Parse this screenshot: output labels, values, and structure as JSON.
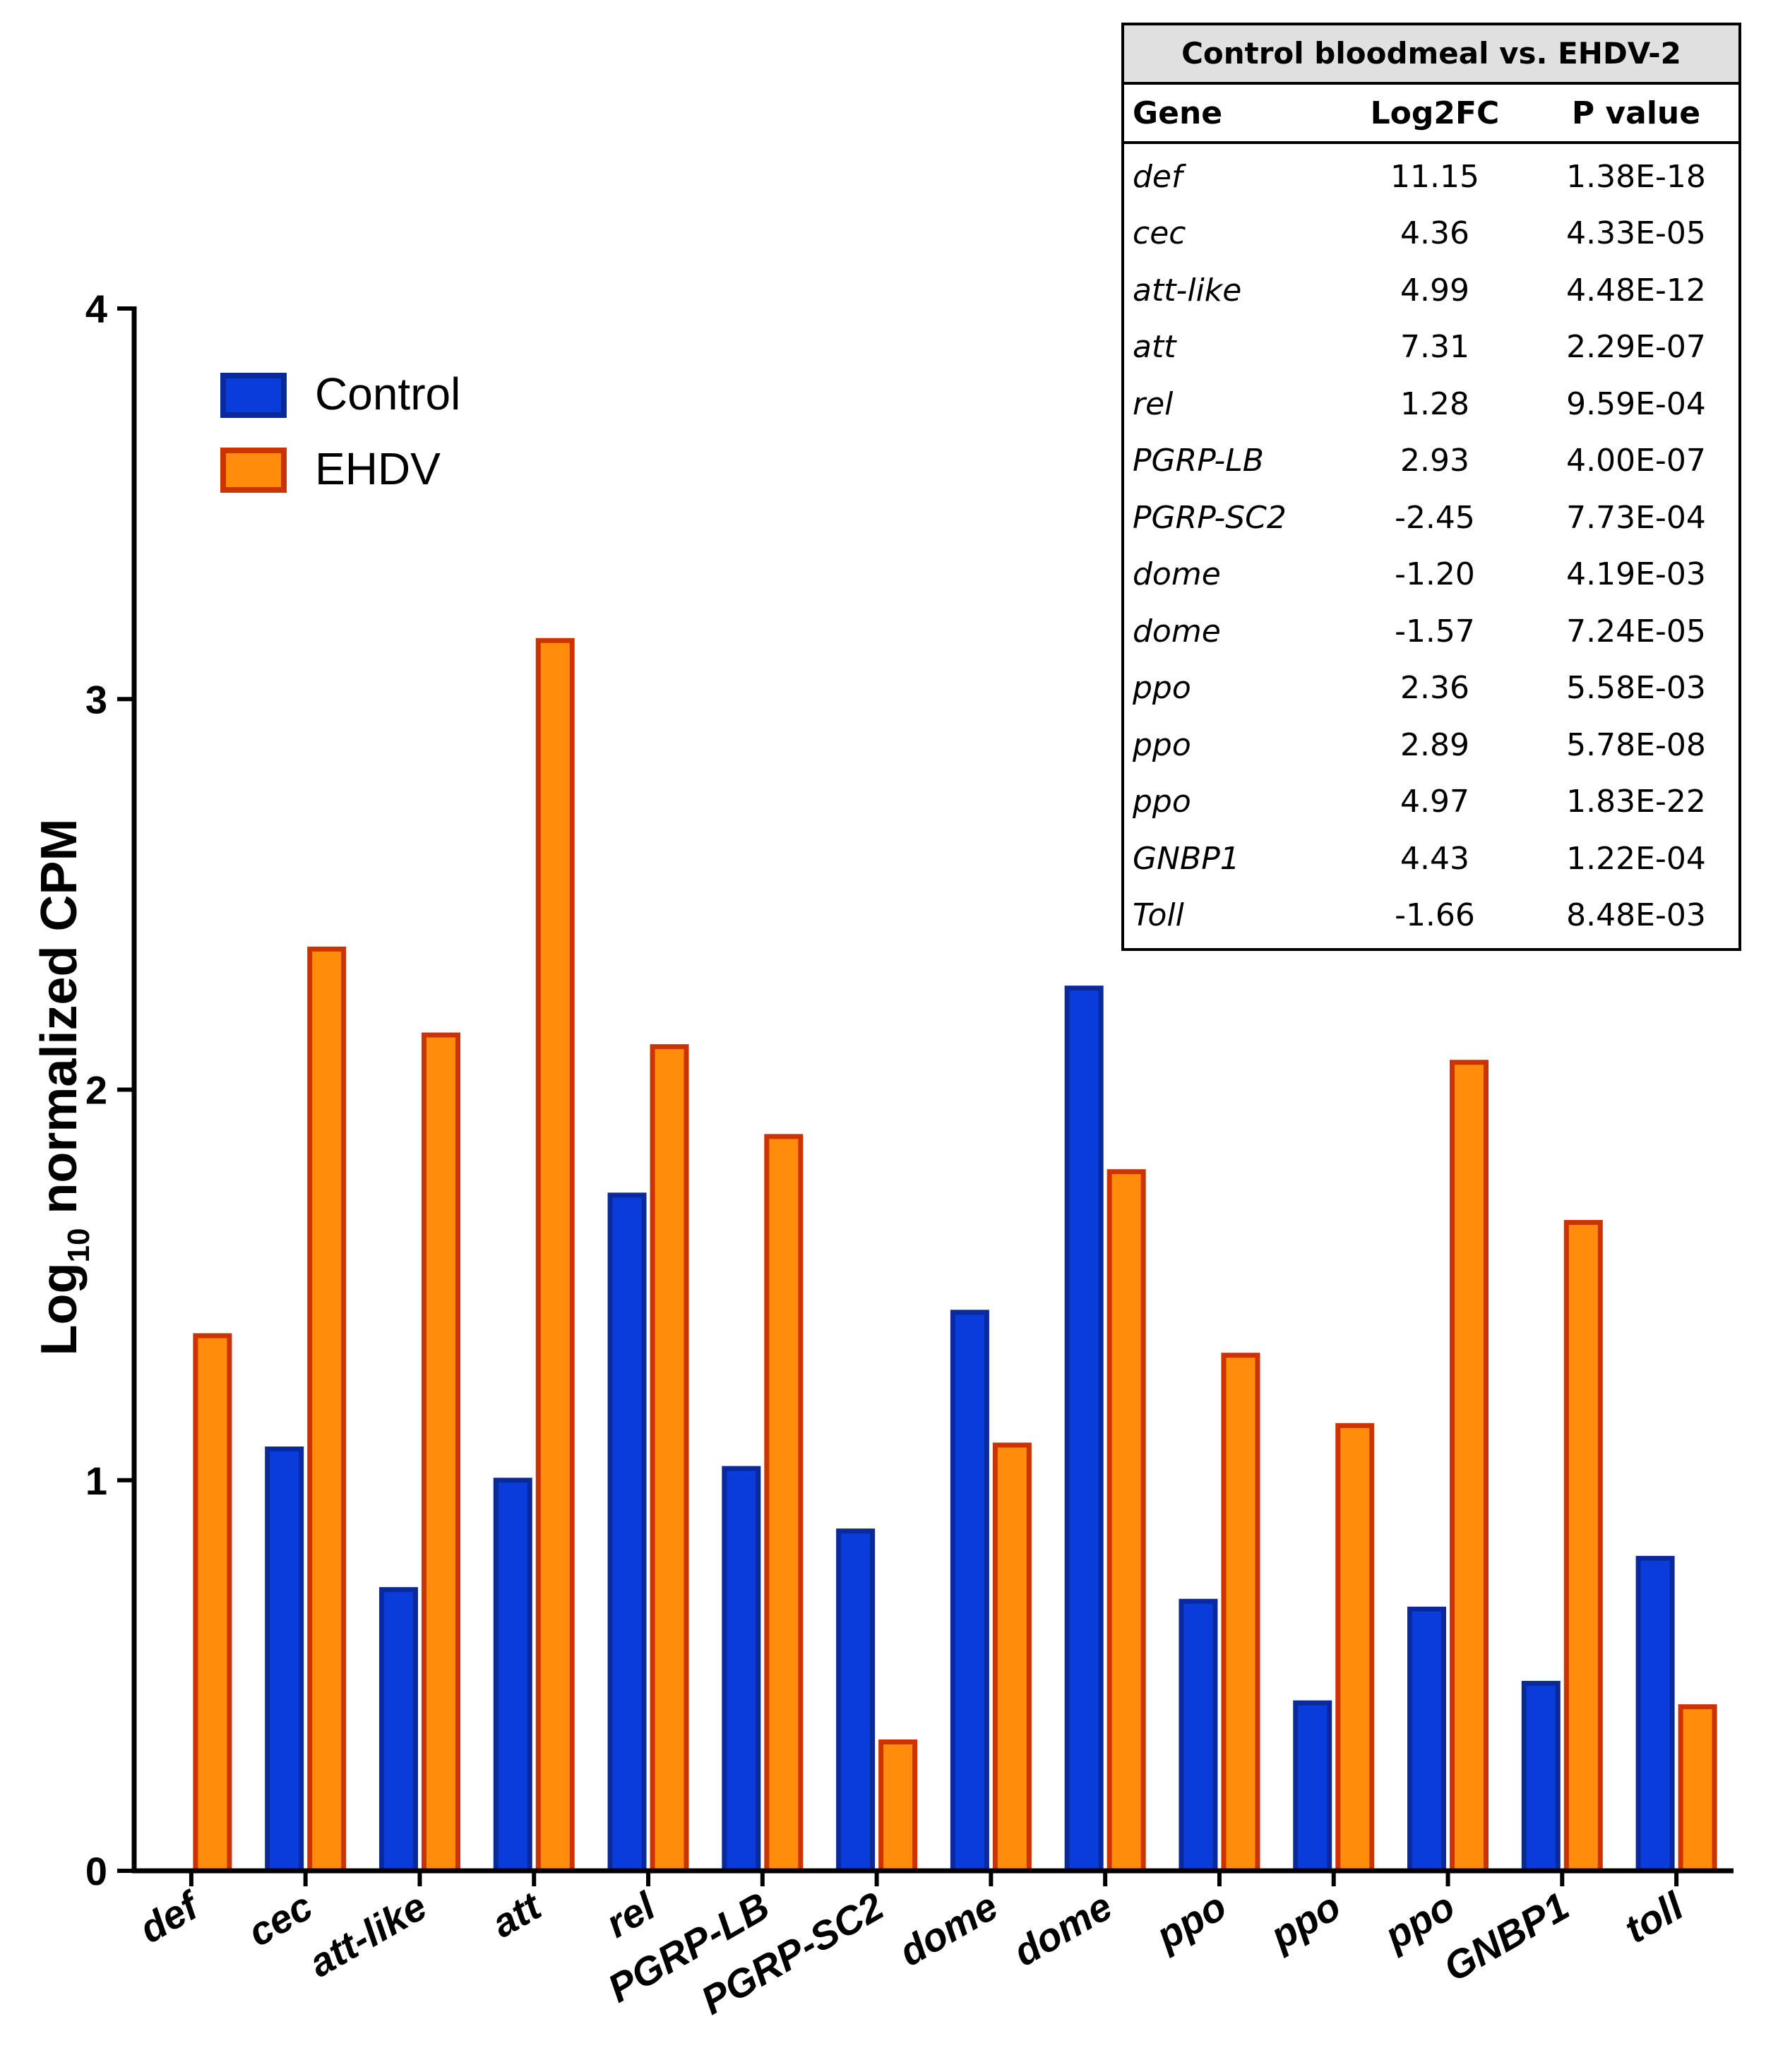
{
  "chart_data": {
    "type": "bar",
    "title": "",
    "xlabel": "",
    "ylabel_main": "Log",
    "ylabel_sub": "10",
    "ylabel_rest": " normalized CPM",
    "ylim": [
      0,
      4
    ],
    "yticks": [
      "0",
      "1",
      "2",
      "3",
      "4"
    ],
    "categories": [
      "def",
      "cec",
      "att-like",
      "att",
      "rel",
      "PGRP-LB",
      "PGRP-SC2",
      "dome",
      "dome",
      "ppo",
      "ppo",
      "ppo",
      "GNBP1",
      "toll"
    ],
    "series": [
      {
        "name": "Control",
        "color": "#0a3cdc",
        "edge": "#0a2a9c",
        "values": [
          0,
          1.08,
          0.72,
          1.0,
          1.73,
          1.03,
          0.87,
          1.43,
          2.26,
          0.69,
          0.43,
          0.67,
          0.48,
          0.8
        ]
      },
      {
        "name": "EHDV",
        "color": "#ff8c0a",
        "edge": "#cc3300",
        "values": [
          1.37,
          2.36,
          2.14,
          3.15,
          2.11,
          1.88,
          0.33,
          1.09,
          1.79,
          1.32,
          1.14,
          2.07,
          1.66,
          0.42
        ]
      }
    ],
    "legend_position": "top-left"
  },
  "table": {
    "title": "Control bloodmeal vs. EHDV-2",
    "headers": [
      "Gene",
      "Log2FC",
      "P value"
    ],
    "rows": [
      [
        "def",
        "11.15",
        "1.38E-18"
      ],
      [
        "cec",
        "4.36",
        "4.33E-05"
      ],
      [
        "att-like",
        "4.99",
        "4.48E-12"
      ],
      [
        "att",
        "7.31",
        "2.29E-07"
      ],
      [
        "rel",
        "1.28",
        "9.59E-04"
      ],
      [
        "PGRP-LB",
        "2.93",
        "4.00E-07"
      ],
      [
        "PGRP-SC2",
        "-2.45",
        "7.73E-04"
      ],
      [
        "dome",
        "-1.20",
        "4.19E-03"
      ],
      [
        "dome",
        "-1.57",
        "7.24E-05"
      ],
      [
        "ppo",
        "2.36",
        "5.58E-03"
      ],
      [
        "ppo",
        "2.89",
        "5.78E-08"
      ],
      [
        "ppo",
        "4.97",
        "1.83E-22"
      ],
      [
        "GNBP1",
        "4.43",
        "1.22E-04"
      ],
      [
        "Toll",
        "-1.66",
        "8.48E-03"
      ]
    ]
  }
}
